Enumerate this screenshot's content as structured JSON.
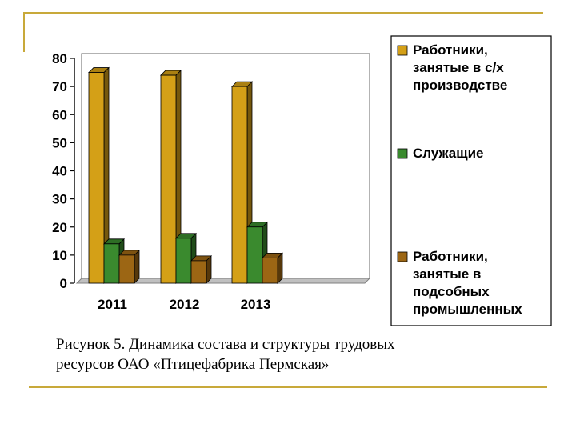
{
  "chart_data": {
    "type": "bar",
    "categories": [
      "2011",
      "2012",
      "2013"
    ],
    "series": [
      {
        "name": "Работники, занятые в с/х производстве",
        "values": [
          75,
          74,
          70
        ],
        "color": "#d4a017"
      },
      {
        "name": "Служащие",
        "values": [
          14,
          16,
          20
        ],
        "color": "#3a8a2e"
      },
      {
        "name": "Работники, занятые в подсобных промышленных",
        "values": [
          10,
          8,
          9
        ],
        "color": "#9c6614"
      }
    ],
    "yticks": [
      "0",
      "10",
      "20",
      "30",
      "40",
      "50",
      "60",
      "70",
      "80"
    ],
    "ylim": [
      0,
      80
    ],
    "grid": false,
    "legend_position": "right",
    "legend_lines": [
      [
        "Работники,",
        "занятые в с/х",
        "производстве"
      ],
      [
        "Служащие"
      ],
      [
        "Работники,",
        "занятые в",
        "подсобных",
        "промышленных"
      ]
    ]
  },
  "caption": {
    "line1": "Рисунок 5. Динамика состава и структуры трудовых",
    "line2": "ресурсов ОАО «Птицефабрика Пермская»"
  }
}
